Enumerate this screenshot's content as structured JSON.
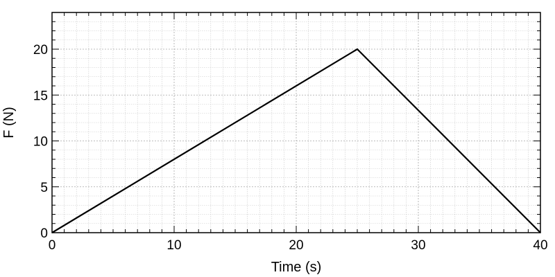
{
  "chart_data": {
    "type": "line",
    "xlabel": "Time (s)",
    "ylabel": "F (N)",
    "xlim": [
      0,
      40
    ],
    "ylim": [
      0,
      24
    ],
    "x_ticks": [
      0,
      10,
      20,
      30,
      40
    ],
    "y_ticks": [
      0,
      5,
      10,
      15,
      20
    ],
    "minor_x_step": 1,
    "minor_y_step": 1,
    "grid": true,
    "line_color": "#000000",
    "series": [
      {
        "x": [
          0,
          25,
          40
        ],
        "y": [
          0,
          20,
          0
        ]
      }
    ]
  }
}
